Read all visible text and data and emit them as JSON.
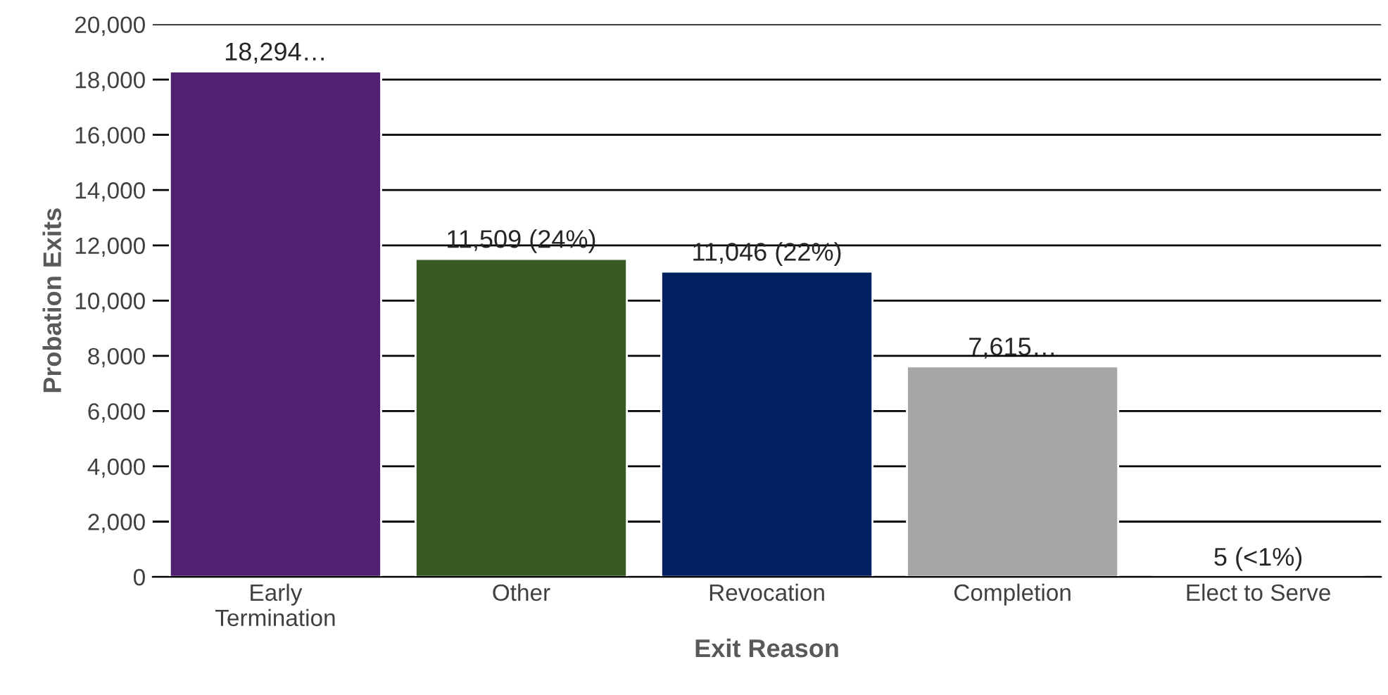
{
  "chart_data": {
    "type": "bar",
    "xlabel": "Exit Reason",
    "ylabel": "Probation Exits",
    "categories": [
      "Early\nTermination",
      "Other",
      "Revocation",
      "Completion",
      "Elect to Serve"
    ],
    "values": [
      18294,
      11509,
      11046,
      7615,
      5
    ],
    "colors": [
      "#4f2170",
      "#3a5a24",
      "#002060",
      "#a6a6a6",
      "#a6a6a6"
    ],
    "value_labels": [
      "18,294…",
      "11,509 (24%)",
      "11,046 (22%)",
      "7,615…",
      "5 (<1%)"
    ],
    "ylim": [
      0,
      20000
    ],
    "yticks": [
      {
        "value": 0,
        "label": "0"
      },
      {
        "value": 2000,
        "label": "2,000"
      },
      {
        "value": 4000,
        "label": "4,000"
      },
      {
        "value": 6000,
        "label": "6,000"
      },
      {
        "value": 8000,
        "label": "8,000"
      },
      {
        "value": 10000,
        "label": "10,000"
      },
      {
        "value": 12000,
        "label": "12,000"
      },
      {
        "value": 14000,
        "label": "14,000"
      },
      {
        "value": 16000,
        "label": "16,000"
      },
      {
        "value": 18000,
        "label": "18,000"
      },
      {
        "value": 20000,
        "label": "20,000"
      }
    ],
    "grid": "y",
    "legend": false
  }
}
